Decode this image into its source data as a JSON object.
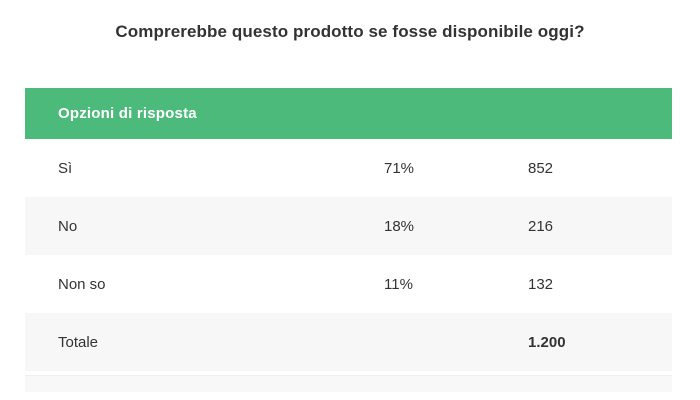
{
  "title": "Comprerebbe questo prodotto se fosse disponibile oggi?",
  "table": {
    "header_label": "Opzioni di risposta",
    "rows": [
      {
        "label": "Sì",
        "percent": "71%",
        "count": "852"
      },
      {
        "label": "No",
        "percent": "18%",
        "count": "216"
      },
      {
        "label": "Non so",
        "percent": "11%",
        "count": "132"
      }
    ],
    "total": {
      "label": "Totale",
      "count": "1.200"
    }
  },
  "colors": {
    "header_bg": "#4CBA7B",
    "header_text": "#FFFFFF",
    "row_alt_bg": "#F7F7F7",
    "text": "#333333"
  },
  "chart_data": {
    "type": "table",
    "title": "Comprerebbe questo prodotto se fosse disponibile oggi?",
    "header": "Opzioni di risposta",
    "rows": [
      {
        "option": "Sì",
        "percent": 71,
        "responses": 852
      },
      {
        "option": "No",
        "percent": 18,
        "responses": 216
      },
      {
        "option": "Non so",
        "percent": 11,
        "responses": 132
      }
    ],
    "total_label": "Totale",
    "total_responses": 1200,
    "total_display": "1.200",
    "layout": "alternating row backgrounds, green header band, counts right column left-aligned"
  }
}
